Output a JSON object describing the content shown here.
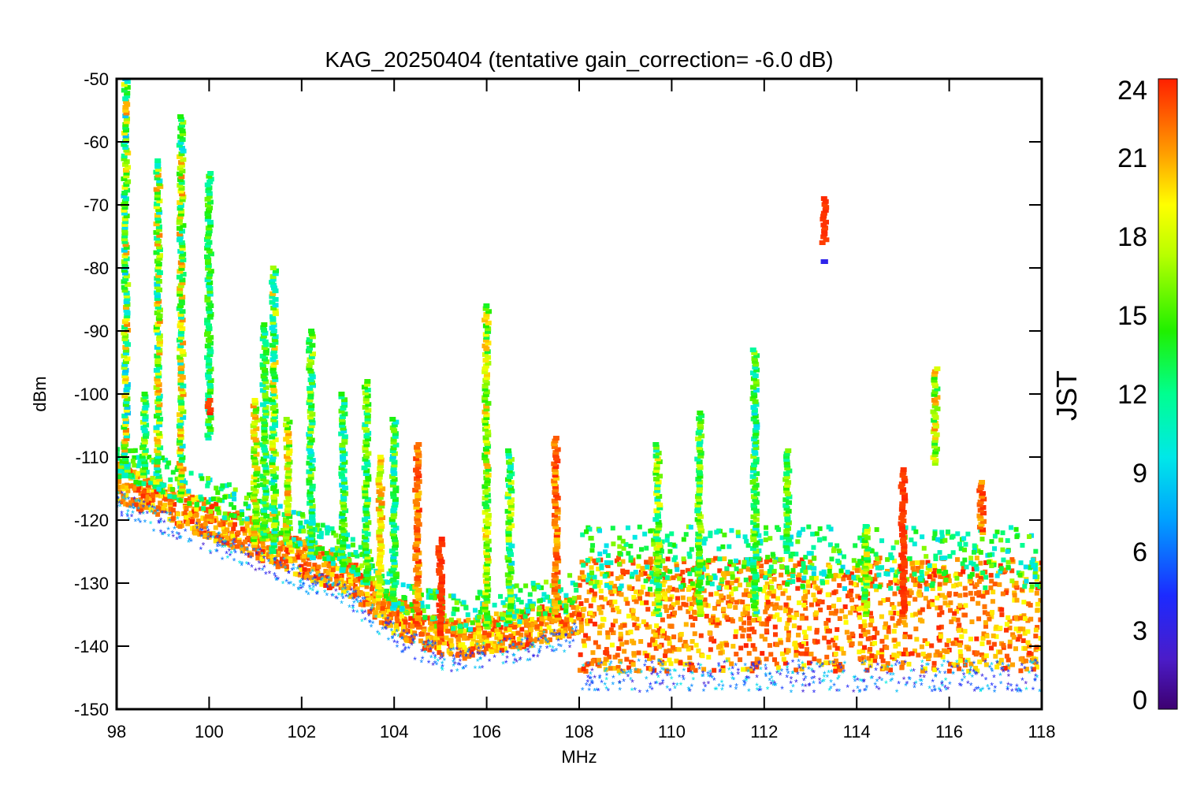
{
  "chart_data": {
    "type": "scatter",
    "title": "KAG_20250404 (tentative gain_correction= -6.0 dB)",
    "xlabel": "MHz",
    "ylabel": "dBm",
    "xlim": [
      98,
      118
    ],
    "ylim": [
      -150,
      -50
    ],
    "x_ticks": [
      "98",
      "100",
      "102",
      "104",
      "106",
      "108",
      "110",
      "112",
      "114",
      "116",
      "118"
    ],
    "y_ticks": [
      "-50",
      "-60",
      "-70",
      "-80",
      "-90",
      "-100",
      "-110",
      "-120",
      "-130",
      "-140",
      "-150"
    ],
    "grid": false,
    "colorbar": {
      "label": "JST",
      "range": [
        0,
        24
      ],
      "ticks": [
        "24",
        "21",
        "18",
        "15",
        "12",
        "9",
        "6",
        "3",
        "0"
      ],
      "colormap": "rainbow"
    },
    "noise_floor": {
      "x": [
        98,
        99,
        100,
        101,
        102,
        103,
        104,
        104.5,
        105,
        105.5,
        106,
        107,
        108,
        110,
        112,
        114,
        115,
        116,
        117,
        118
      ],
      "y": [
        -114,
        -117,
        -120,
        -123,
        -126,
        -129,
        -135,
        -137,
        -138.5,
        -139,
        -138,
        -137,
        -135,
        -135,
        -135,
        -135,
        -135,
        -135,
        -135,
        -135
      ]
    },
    "series": [
      {
        "x": 98.2,
        "y_top": -50,
        "y_bottom": -113,
        "jst_range": [
          8,
          22
        ]
      },
      {
        "x": 98.6,
        "y_top": -100,
        "y_bottom": -113,
        "jst_range": [
          9,
          18
        ]
      },
      {
        "x": 98.9,
        "y_top": -63,
        "y_bottom": -114,
        "jst_range": [
          9,
          22
        ]
      },
      {
        "x": 99.4,
        "y_top": -56,
        "y_bottom": -116,
        "jst_range": [
          9,
          22
        ]
      },
      {
        "x": 100.0,
        "y_top": -65,
        "y_bottom": -107,
        "jst_range": [
          10,
          16
        ]
      },
      {
        "x": 100.0,
        "y_top": -101,
        "y_bottom": -103,
        "jst_range": [
          23,
          24
        ]
      },
      {
        "x": 101.0,
        "y_top": -101,
        "y_bottom": -124,
        "jst_range": [
          14,
          22
        ]
      },
      {
        "x": 101.2,
        "y_top": -89,
        "y_bottom": -123,
        "jst_range": [
          10,
          17
        ]
      },
      {
        "x": 101.4,
        "y_top": -80,
        "y_bottom": -125,
        "jst_range": [
          9,
          21
        ]
      },
      {
        "x": 101.7,
        "y_top": -104,
        "y_bottom": -124,
        "jst_range": [
          14,
          22
        ]
      },
      {
        "x": 102.2,
        "y_top": -90,
        "y_bottom": -126,
        "jst_range": [
          9,
          18
        ]
      },
      {
        "x": 102.9,
        "y_top": -100,
        "y_bottom": -128,
        "jst_range": [
          9,
          17
        ]
      },
      {
        "x": 103.4,
        "y_top": -98,
        "y_bottom": -130,
        "jst_range": [
          10,
          18
        ]
      },
      {
        "x": 103.7,
        "y_top": -110,
        "y_bottom": -132,
        "jst_range": [
          16,
          22
        ]
      },
      {
        "x": 104.0,
        "y_top": -104,
        "y_bottom": -134,
        "jst_range": [
          9,
          17
        ]
      },
      {
        "x": 104.5,
        "y_top": -108,
        "y_bottom": -137,
        "jst_range": [
          20,
          24
        ]
      },
      {
        "x": 105.0,
        "y_top": -123,
        "y_bottom": -138,
        "jst_range": [
          23,
          24
        ]
      },
      {
        "x": 106.0,
        "y_top": -86,
        "y_bottom": -137,
        "jst_range": [
          13,
          21
        ]
      },
      {
        "x": 106.5,
        "y_top": -109,
        "y_bottom": -136,
        "jst_range": [
          9,
          19
        ]
      },
      {
        "x": 107.5,
        "y_top": -107,
        "y_bottom": -136,
        "jst_range": [
          20,
          24
        ]
      },
      {
        "x": 109.7,
        "y_top": -108,
        "y_bottom": -135,
        "jst_range": [
          10,
          20
        ]
      },
      {
        "x": 110.6,
        "y_top": -103,
        "y_bottom": -135,
        "jst_range": [
          11,
          18
        ]
      },
      {
        "x": 111.8,
        "y_top": -93,
        "y_bottom": -135,
        "jst_range": [
          9,
          17
        ]
      },
      {
        "x": 112.5,
        "y_top": -109,
        "y_bottom": -125,
        "jst_range": [
          11,
          18
        ]
      },
      {
        "x": 113.3,
        "y_top": -69,
        "y_bottom": -76,
        "jst_range": [
          23,
          24
        ]
      },
      {
        "x": 113.3,
        "y_top": -79,
        "y_bottom": -79,
        "jst_range": [
          3,
          4
        ]
      },
      {
        "x": 114.2,
        "y_top": -121,
        "y_bottom": -135,
        "jst_range": [
          12,
          20
        ]
      },
      {
        "x": 115.0,
        "y_top": -112,
        "y_bottom": -135,
        "jst_range": [
          23,
          24
        ]
      },
      {
        "x": 115.7,
        "y_top": -96,
        "y_bottom": -111,
        "jst_range": [
          13,
          22
        ]
      },
      {
        "x": 116.7,
        "y_top": -114,
        "y_bottom": -122,
        "jst_range": [
          20,
          24
        ]
      }
    ]
  }
}
